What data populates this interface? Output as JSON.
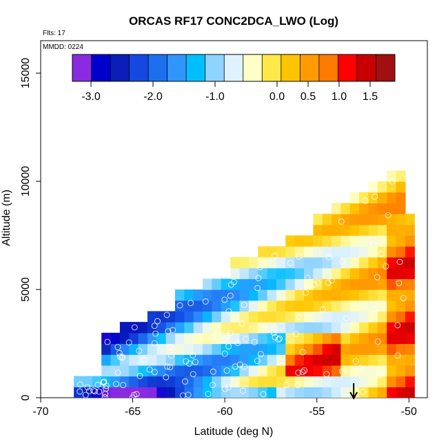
{
  "chart_data": {
    "type": "heatmap",
    "title": "ORCAS RF17 CONC2DCA_LWO (Log)",
    "xlabel": "Latitude (deg N)",
    "ylabel": "Altitude (m)",
    "xlim": [
      -70,
      -49
    ],
    "ylim": [
      0,
      16500
    ],
    "x_ticks": [
      -70,
      -65,
      -60,
      -55,
      -50
    ],
    "y_ticks": [
      0,
      5000,
      10000,
      15000
    ],
    "annotations": {
      "flights": "Flts: 17",
      "date": "MMDD: 0224"
    },
    "colorbar": {
      "range": [
        -3.3,
        1.9
      ],
      "tick_values": [
        -3.0,
        -2.0,
        -1.0,
        0.0,
        0.5,
        1.0,
        1.5
      ],
      "tick_labels": [
        "-3.0",
        "-2.0",
        "-1.0",
        "0.0",
        "0.5",
        "1.0",
        "1.5"
      ],
      "colors": [
        "#8a2be2",
        "#0000cd",
        "#0a1fb8",
        "#1448e0",
        "#1e6ff0",
        "#2f95ff",
        "#00bfff",
        "#8fd3ff",
        "#dff2ff",
        "#ffffc8",
        "#ffe84a",
        "#ffc400",
        "#ff9b00",
        "#ff7a00",
        "#ff0000",
        "#c80000",
        "#a01010"
      ]
    },
    "grid": false,
    "coverage": {
      "lat_edges": [
        -68.2,
        -66.5,
        -65.5,
        -64.0,
        -62.5,
        -61.0,
        -59.5,
        -58.0,
        -56.5,
        -55.0,
        -54.0,
        -53.0,
        -52.0,
        -51.0,
        -50.3,
        -49.7
      ],
      "top_altitude": [
        800,
        2600,
        3300,
        4000,
        4700,
        5400,
        6100,
        6800,
        7500,
        8300,
        8900,
        9400,
        9800,
        10300,
        8300
      ]
    },
    "marker": {
      "latitude": -53.0,
      "label": "arrow"
    }
  }
}
